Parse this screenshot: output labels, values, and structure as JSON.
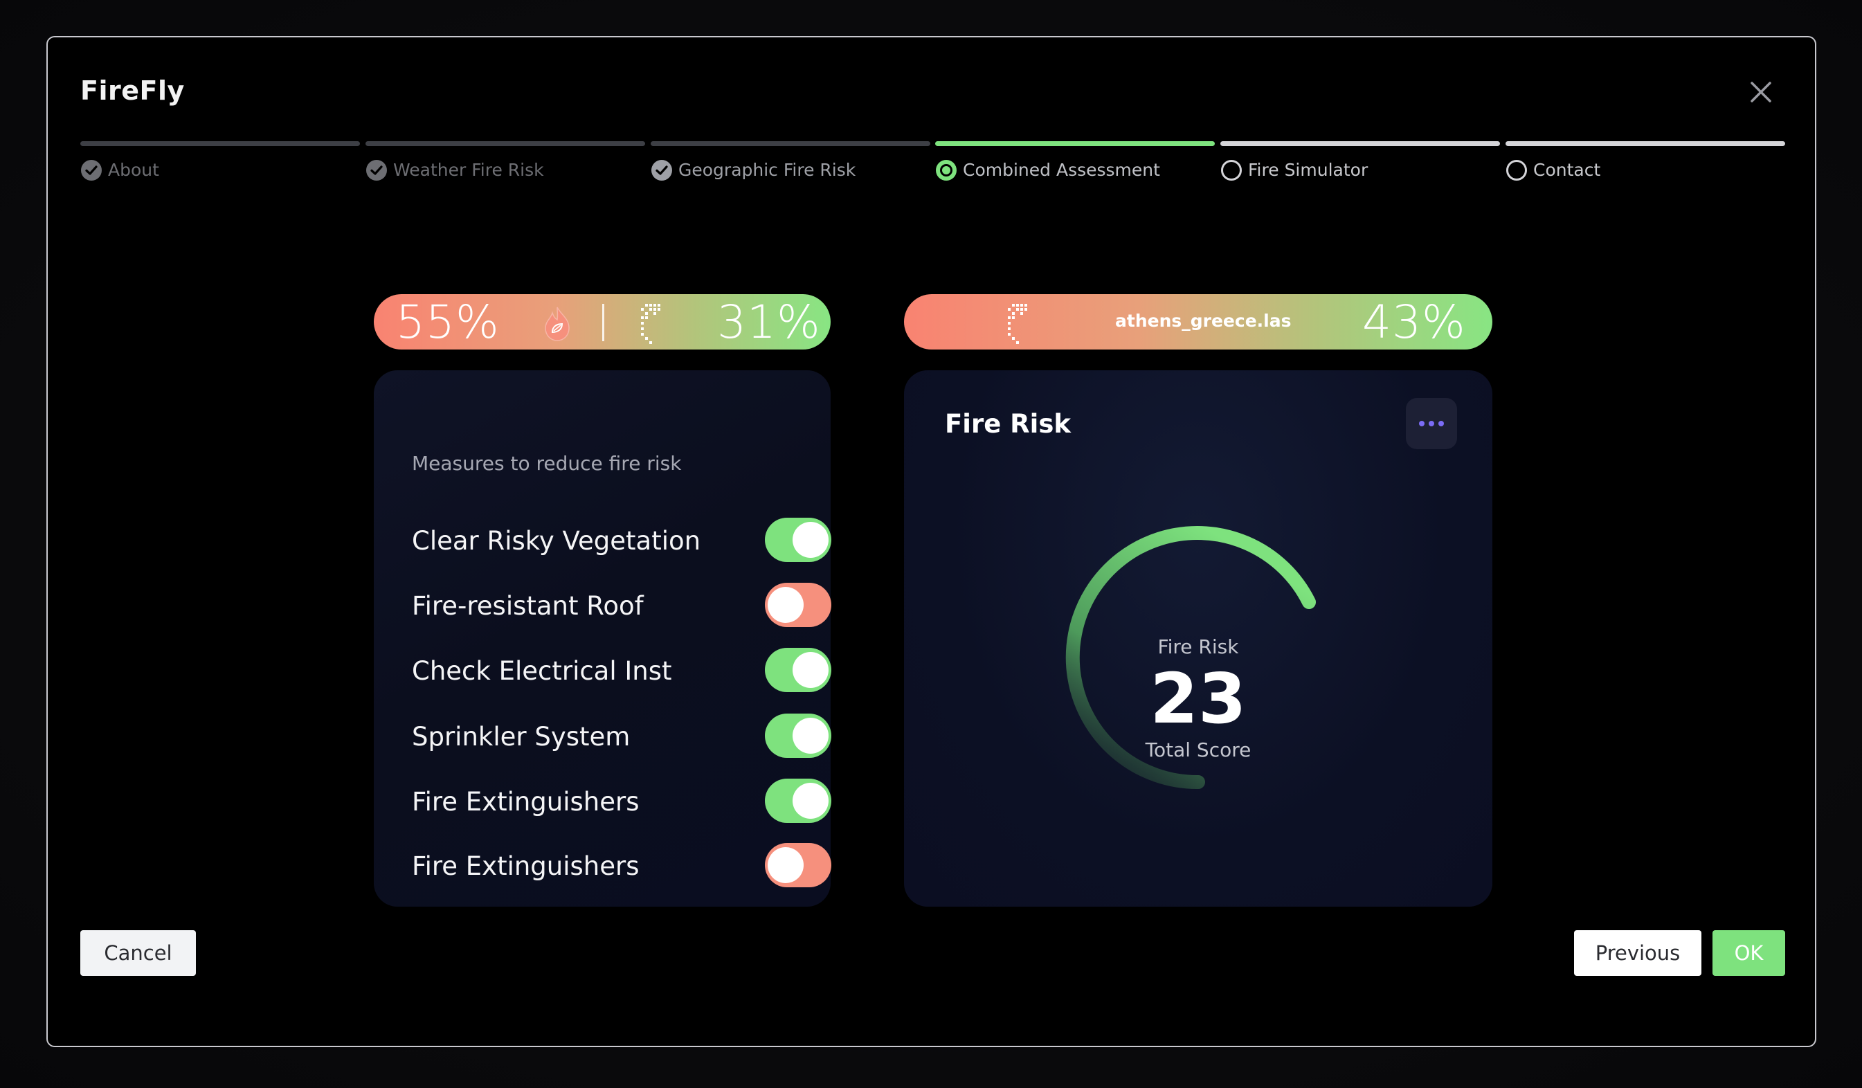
{
  "app": {
    "title": "FireFly"
  },
  "stepper": {
    "steps": [
      {
        "label": "About",
        "state": "done"
      },
      {
        "label": "Weather Fire Risk",
        "state": "done"
      },
      {
        "label": "Geographic Fire Risk",
        "state": "done"
      },
      {
        "label": "Combined Assessment",
        "state": "current"
      },
      {
        "label": "Fire Simulator",
        "state": "todo"
      },
      {
        "label": "Contact",
        "state": "todo"
      }
    ]
  },
  "summary": {
    "weather_pct": "55%",
    "geo_pct": "31%",
    "file_name": "athens_greece.las",
    "combined_pct": "43%"
  },
  "measures": {
    "heading": "Measures to reduce fire risk",
    "items": [
      {
        "label": "Clear Risky Vegetation",
        "enabled": true
      },
      {
        "label": "Fire-resistant Roof",
        "enabled": false
      },
      {
        "label": "Check Electrical Inst",
        "enabled": true
      },
      {
        "label": "Sprinkler System",
        "enabled": true
      },
      {
        "label": "Fire Extinguishers",
        "enabled": true
      },
      {
        "label": "Fire Extinguishers",
        "enabled": false
      }
    ]
  },
  "fire_risk": {
    "card_title": "Fire Risk",
    "gauge_label": "Fire Risk",
    "score": "23",
    "score_caption": "Total Score"
  },
  "footer": {
    "cancel_label": "Cancel",
    "previous_label": "Previous",
    "ok_label": "OK"
  },
  "colors": {
    "accent_green": "#7ee27e",
    "accent_salmon": "#f6907d",
    "dots_purple": "#7b6cf6"
  }
}
